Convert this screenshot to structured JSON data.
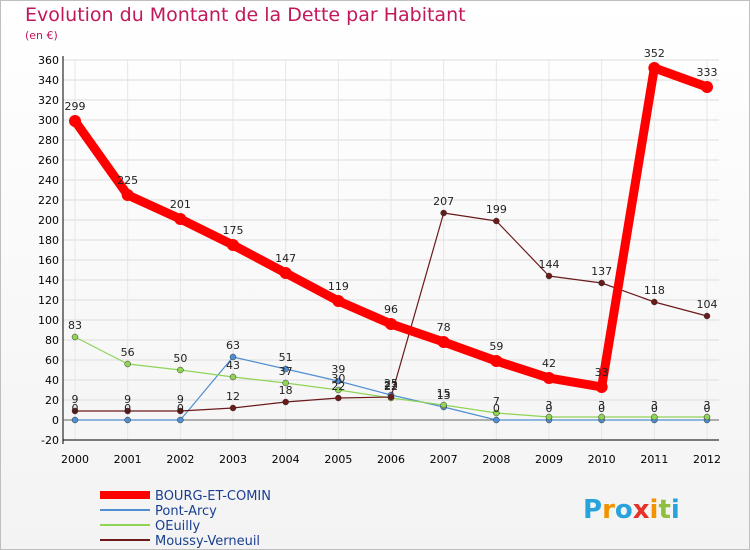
{
  "header": {
    "title": "Evolution du Montant de la Dette par Habitant",
    "subtitle": "(en €)"
  },
  "brand": {
    "letters": [
      "P",
      "r",
      "o",
      "x",
      "i",
      "t",
      "i"
    ],
    "colors": [
      "#29a3dc",
      "#f29400",
      "#29a3dc",
      "#e6332a",
      "#f29400",
      "#8fbf3f",
      "#29a3dc"
    ]
  },
  "chart_data": {
    "type": "line",
    "title": "Evolution du Montant de la Dette par Habitant",
    "ylabel": "(en €)",
    "xlabel": "",
    "x": [
      "2000",
      "2001",
      "2002",
      "2003",
      "2004",
      "2005",
      "2006",
      "2007",
      "2008",
      "2009",
      "2010",
      "2011",
      "2012"
    ],
    "ylim": [
      -20,
      360
    ],
    "yticks": [
      -20,
      0,
      20,
      40,
      60,
      80,
      100,
      120,
      140,
      160,
      180,
      200,
      220,
      240,
      260,
      280,
      300,
      320,
      340,
      360
    ],
    "grid": true,
    "legend_position": "bottom-left",
    "series": [
      {
        "name": "BOURG-ET-COMIN",
        "color": "#ff0000",
        "values": [
          299,
          225,
          201,
          175,
          147,
          119,
          96,
          78,
          59,
          42,
          33,
          352,
          333
        ]
      },
      {
        "name": "Pont-Arcy",
        "color": "#4f8fd1",
        "values": [
          0,
          0,
          0,
          63,
          51,
          39,
          25,
          13,
          0,
          0,
          0,
          0,
          0
        ]
      },
      {
        "name": "OEuilly",
        "color": "#8fd456",
        "values": [
          83,
          56,
          50,
          43,
          37,
          30,
          22,
          15,
          7,
          3,
          3,
          3,
          3
        ]
      },
      {
        "name": "Moussy-Verneuil",
        "color": "#6b1a1a",
        "values": [
          9,
          9,
          9,
          12,
          18,
          22,
          23,
          207,
          199,
          144,
          137,
          118,
          104
        ]
      }
    ]
  }
}
